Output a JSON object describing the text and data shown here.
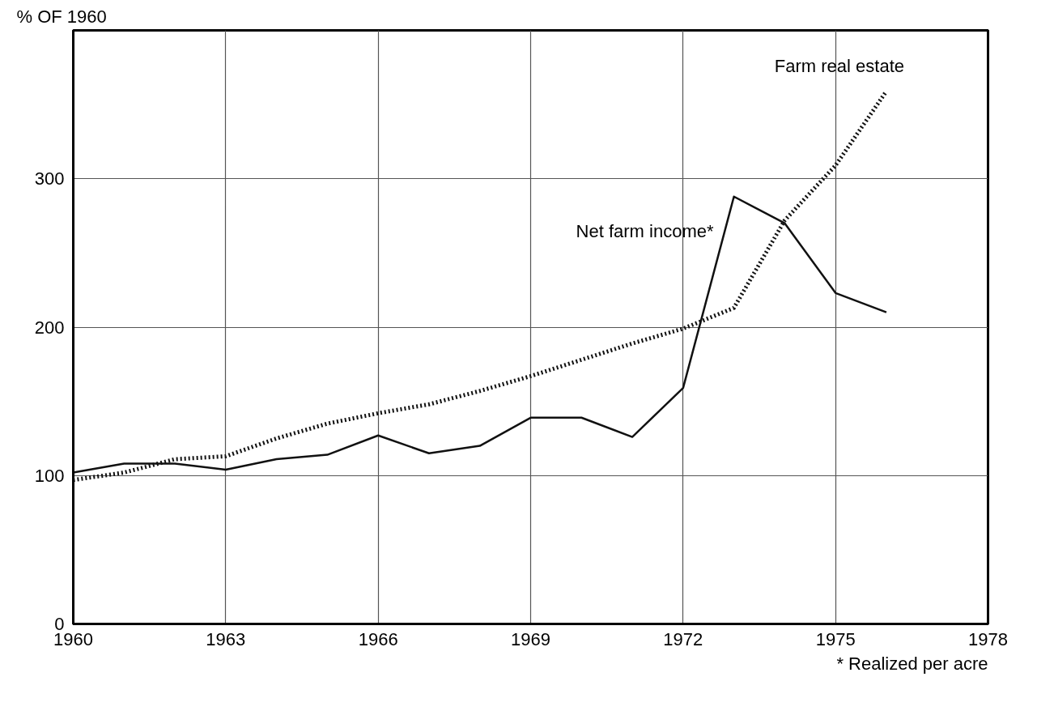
{
  "chart_data": {
    "type": "line",
    "ylabel": "% OF 1960",
    "x": [
      1960,
      1961,
      1962,
      1963,
      1964,
      1965,
      1966,
      1967,
      1968,
      1969,
      1970,
      1971,
      1972,
      1973,
      1974,
      1975,
      1976
    ],
    "series": [
      {
        "name": "Net farm income*",
        "color": "#111111",
        "line_style": "solid",
        "values": [
          102,
          108,
          108,
          104,
          111,
          114,
          127,
          115,
          120,
          139,
          139,
          126,
          159,
          288,
          270,
          223,
          210
        ]
      },
      {
        "name": "Farm real estate",
        "color": "#111111",
        "line_style": "dotted",
        "values": [
          97,
          102,
          111,
          113,
          125,
          135,
          142,
          148,
          157,
          167,
          178,
          189,
          199,
          213,
          272,
          309,
          359
        ]
      }
    ],
    "xlim": [
      1960,
      1978
    ],
    "xticks": [
      1960,
      1963,
      1966,
      1969,
      1972,
      1975,
      1978
    ],
    "ylim": [
      0,
      400
    ],
    "yticks": [
      0,
      100,
      200,
      300,
      {
        "value": 400,
        "label": null
      }
    ],
    "grid": true,
    "legend": false,
    "marker": "none",
    "annotations": [
      "* Realized per acre"
    ]
  }
}
